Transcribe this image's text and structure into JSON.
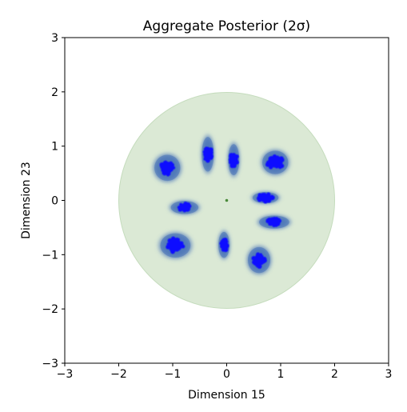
{
  "chart_data": {
    "type": "scatter",
    "title": "Aggregate Posterior (2σ)",
    "xlabel": "Dimension 15",
    "ylabel": "Dimension 23",
    "xlim": [
      -3,
      3
    ],
    "ylim": [
      -3,
      3
    ],
    "xticks": [
      "−3",
      "−2",
      "−1",
      "0",
      "1",
      "2",
      "3"
    ],
    "yticks": [
      "−3",
      "−2",
      "−1",
      "0",
      "1",
      "2",
      "3"
    ],
    "grid": false,
    "prior": {
      "cx": 0,
      "cy": 0,
      "radius": 2,
      "color": "#dbe9d5",
      "edge_color": "#c5dcbd"
    },
    "prior_center": {
      "x": 0,
      "y": 0,
      "color": "#4a8a3a"
    },
    "posterior_color": "#4a74b8",
    "sample_color": "#0a0aff",
    "clusters": [
      {
        "x": -1.1,
        "y": 0.6,
        "rx": 0.3,
        "ry": 0.3,
        "sx": 0.12,
        "sy": 0.13
      },
      {
        "x": -0.35,
        "y": 0.85,
        "rx": 0.14,
        "ry": 0.4,
        "sx": 0.08,
        "sy": 0.13
      },
      {
        "x": 0.13,
        "y": 0.75,
        "rx": 0.13,
        "ry": 0.36,
        "sx": 0.07,
        "sy": 0.12
      },
      {
        "x": 0.9,
        "y": 0.7,
        "rx": 0.3,
        "ry": 0.27,
        "sx": 0.16,
        "sy": 0.11
      },
      {
        "x": -0.78,
        "y": -0.13,
        "rx": 0.32,
        "ry": 0.15,
        "sx": 0.11,
        "sy": 0.08
      },
      {
        "x": 0.72,
        "y": 0.05,
        "rx": 0.3,
        "ry": 0.13,
        "sx": 0.14,
        "sy": 0.07
      },
      {
        "x": 0.88,
        "y": -0.4,
        "rx": 0.35,
        "ry": 0.15,
        "sx": 0.14,
        "sy": 0.07
      },
      {
        "x": -0.95,
        "y": -0.83,
        "rx": 0.35,
        "ry": 0.28,
        "sx": 0.15,
        "sy": 0.13
      },
      {
        "x": -0.05,
        "y": -0.82,
        "rx": 0.13,
        "ry": 0.3,
        "sx": 0.06,
        "sy": 0.11
      },
      {
        "x": 0.6,
        "y": -1.1,
        "rx": 0.26,
        "ry": 0.3,
        "sx": 0.11,
        "sy": 0.12
      }
    ]
  }
}
